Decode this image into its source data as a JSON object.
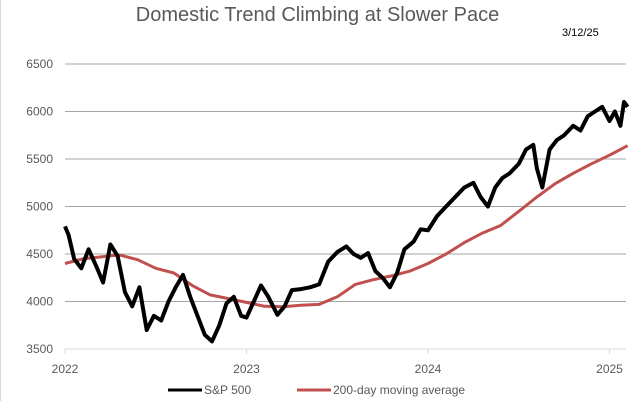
{
  "chart_data": {
    "type": "line",
    "title": "Domestic Trend Climbing at Slower Pace",
    "annotation": "3/12/25",
    "xlabel": "",
    "ylabel": "",
    "ylim": [
      3500,
      6500
    ],
    "xlim": [
      2022,
      2025.1
    ],
    "yticks": [
      "3500",
      "4000",
      "4500",
      "5000",
      "5500",
      "6000",
      "6500"
    ],
    "xticks": [
      {
        "value": 2022,
        "label": "2022"
      },
      {
        "value": 2023,
        "label": "2023"
      },
      {
        "value": 2024,
        "label": "2024"
      },
      {
        "value": 2025,
        "label": "2025"
      }
    ],
    "grid": true,
    "legend_position": "bottom",
    "series": [
      {
        "name": "S&P 500",
        "color": "#000000",
        "x": [
          2022.0,
          2022.02,
          2022.05,
          2022.09,
          2022.13,
          2022.17,
          2022.21,
          2022.25,
          2022.29,
          2022.33,
          2022.37,
          2022.41,
          2022.45,
          2022.49,
          2022.53,
          2022.57,
          2022.61,
          2022.65,
          2022.69,
          2022.73,
          2022.77,
          2022.81,
          2022.85,
          2022.89,
          2022.93,
          2022.97,
          2023.0,
          2023.04,
          2023.08,
          2023.12,
          2023.17,
          2023.21,
          2023.25,
          2023.3,
          2023.35,
          2023.4,
          2023.45,
          2023.5,
          2023.55,
          2023.59,
          2023.63,
          2023.67,
          2023.71,
          2023.75,
          2023.79,
          2023.83,
          2023.87,
          2023.92,
          2023.96,
          2024.0,
          2024.05,
          2024.1,
          2024.15,
          2024.2,
          2024.25,
          2024.29,
          2024.33,
          2024.37,
          2024.41,
          2024.45,
          2024.5,
          2024.54,
          2024.58,
          2024.6,
          2024.63,
          2024.67,
          2024.71,
          2024.75,
          2024.8,
          2024.84,
          2024.88,
          2024.92,
          2024.96,
          2025.0,
          2025.03,
          2025.06,
          2025.08,
          2025.1
        ],
        "y": [
          4790,
          4700,
          4450,
          4350,
          4550,
          4380,
          4200,
          4600,
          4480,
          4100,
          3950,
          4150,
          3700,
          3850,
          3800,
          4000,
          4150,
          4280,
          4050,
          3850,
          3650,
          3580,
          3750,
          3980,
          4050,
          3850,
          3830,
          4000,
          4170,
          4050,
          3860,
          3950,
          4120,
          4130,
          4150,
          4180,
          4420,
          4520,
          4580,
          4500,
          4460,
          4510,
          4320,
          4250,
          4150,
          4300,
          4550,
          4630,
          4760,
          4750,
          4900,
          5000,
          5100,
          5200,
          5250,
          5100,
          5000,
          5200,
          5300,
          5350,
          5450,
          5600,
          5650,
          5400,
          5200,
          5600,
          5700,
          5750,
          5850,
          5800,
          5950,
          6000,
          6050,
          5900,
          6000,
          5850,
          6100,
          6050
        ]
      },
      {
        "name": "200-day moving average",
        "color": "#c0504d",
        "x": [
          2022.0,
          2022.1,
          2022.2,
          2022.3,
          2022.4,
          2022.5,
          2022.6,
          2022.7,
          2022.8,
          2022.9,
          2023.0,
          2023.1,
          2023.2,
          2023.3,
          2023.4,
          2023.5,
          2023.6,
          2023.7,
          2023.8,
          2023.9,
          2024.0,
          2024.1,
          2024.2,
          2024.3,
          2024.4,
          2024.5,
          2024.6,
          2024.7,
          2024.8,
          2024.9,
          2025.0,
          2025.1
        ],
        "y": [
          4400,
          4450,
          4470,
          4490,
          4440,
          4350,
          4300,
          4170,
          4070,
          4030,
          3990,
          3950,
          3945,
          3960,
          3970,
          4050,
          4180,
          4230,
          4270,
          4320,
          4400,
          4500,
          4620,
          4720,
          4800,
          4950,
          5100,
          5240,
          5350,
          5450,
          5540,
          5640
        ]
      }
    ]
  }
}
